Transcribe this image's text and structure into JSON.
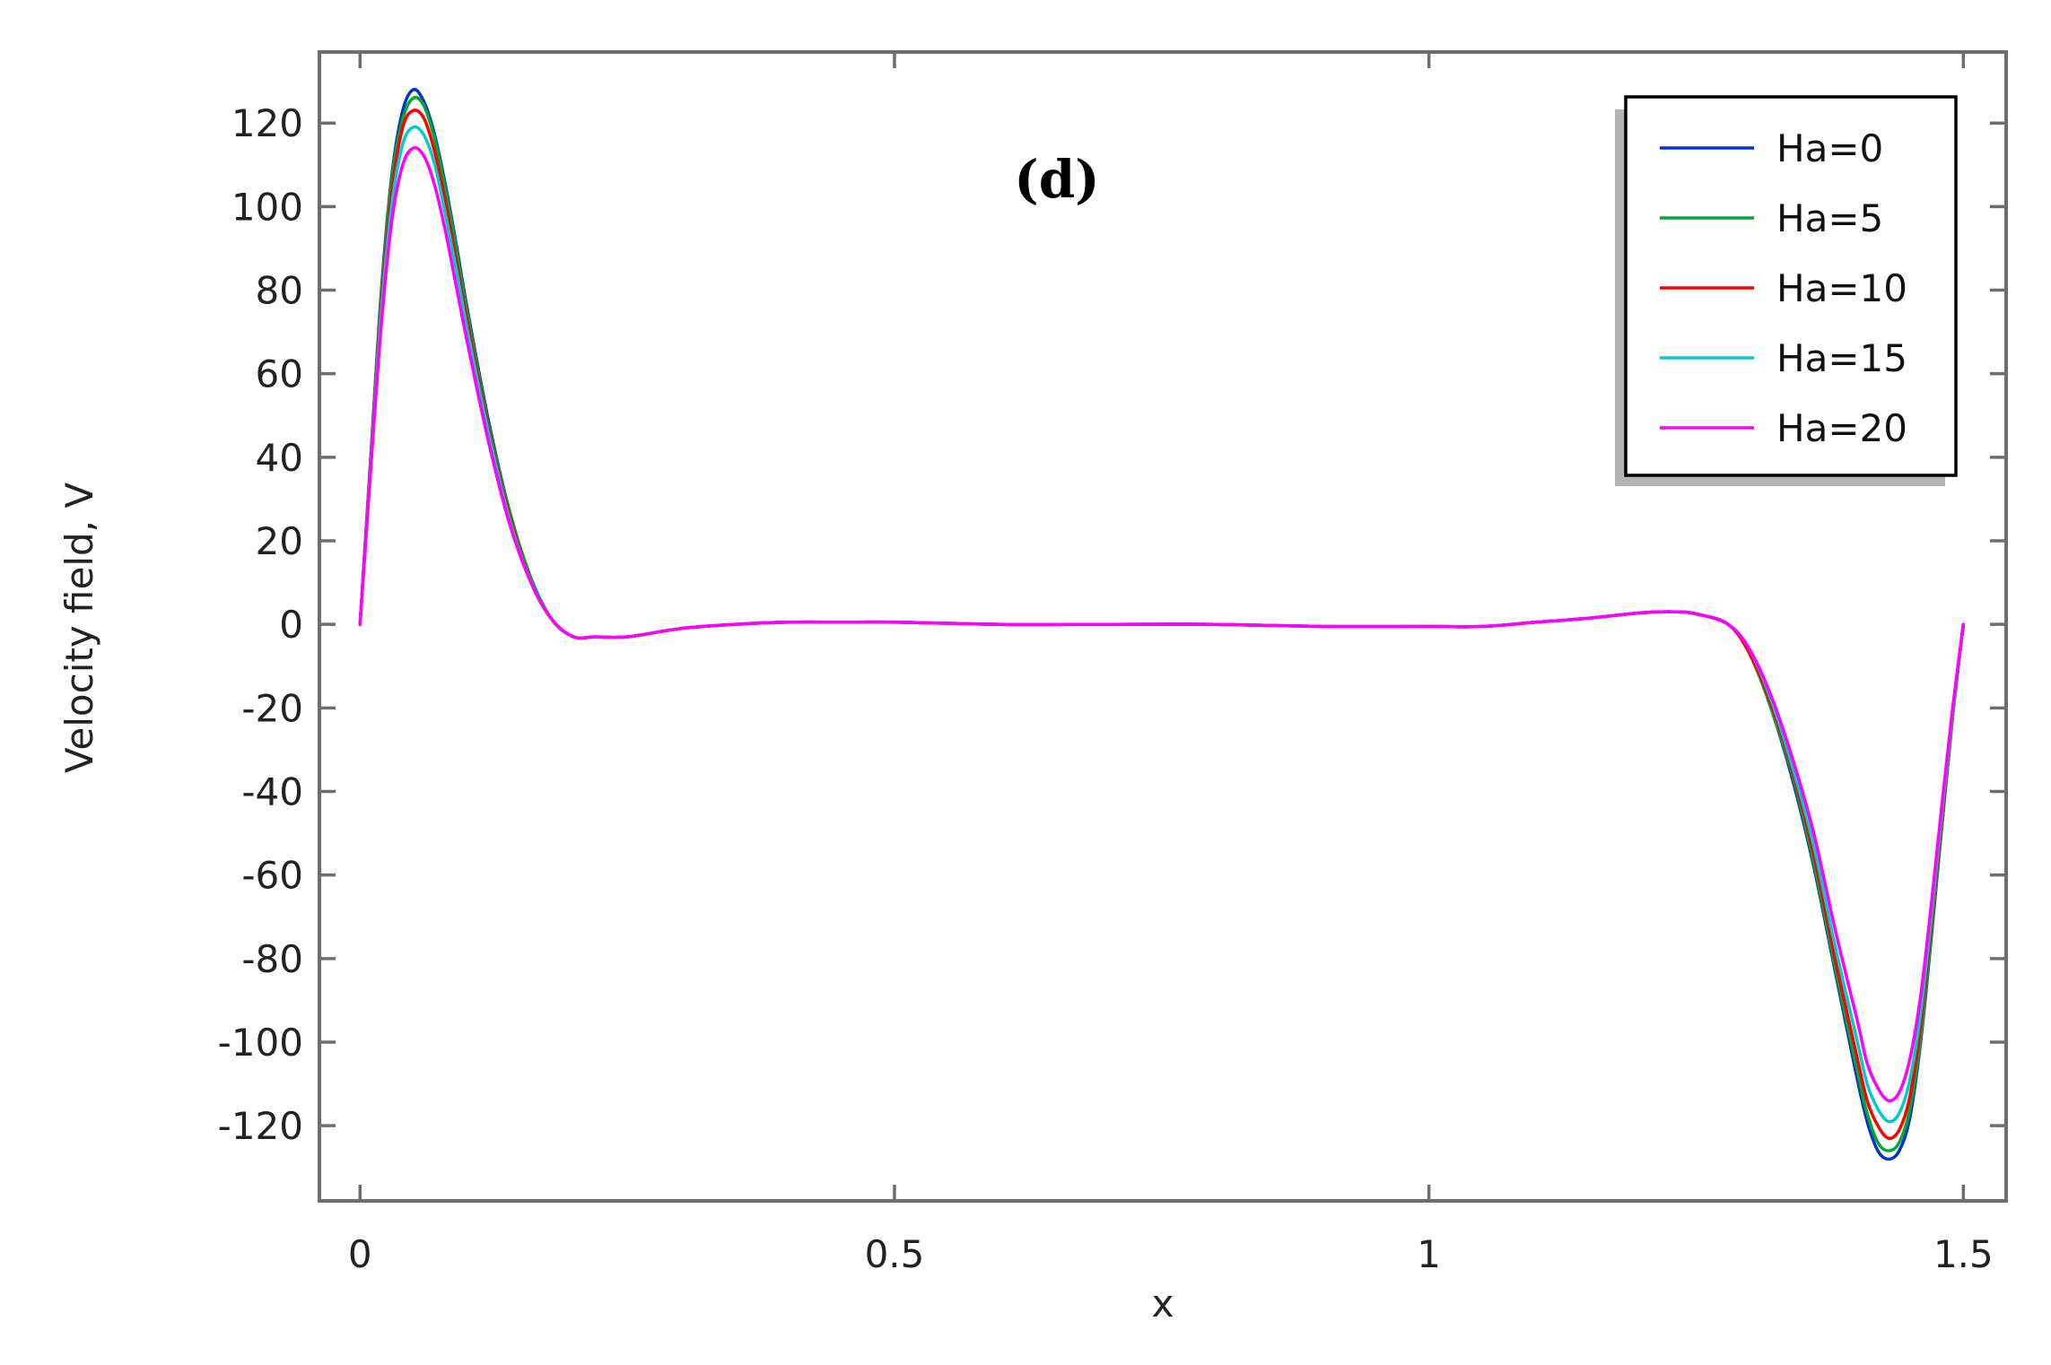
{
  "chart_data": {
    "type": "line",
    "panel_label": "(d)",
    "xlabel": "x",
    "ylabel": "Velocity field, V",
    "xlim": [
      -0.038,
      1.54
    ],
    "ylim": [
      -138,
      137
    ],
    "xticks": [
      0,
      0.5,
      1,
      1.5
    ],
    "xtick_labels": [
      "0",
      "0.5",
      "1",
      "1.5"
    ],
    "yticks": [
      120,
      100,
      80,
      60,
      40,
      20,
      0,
      -20,
      -40,
      -60,
      -80,
      -100,
      -120
    ],
    "ytick_labels": [
      "120",
      "100",
      "80",
      "60",
      "40",
      "20",
      "0",
      "-20",
      "-40",
      "-60",
      "-80",
      "-100",
      "-120"
    ],
    "grid": false,
    "legend_position": "top-right",
    "x": [
      0,
      0.01,
      0.02,
      0.03,
      0.04,
      0.05,
      0.06,
      0.07,
      0.08,
      0.09,
      0.1,
      0.12,
      0.14,
      0.16,
      0.18,
      0.2,
      0.22,
      0.25,
      0.3,
      0.35,
      0.4,
      0.45,
      0.5,
      0.6,
      0.7,
      0.8,
      0.9,
      1.0,
      1.05,
      1.1,
      1.15,
      1.2,
      1.23,
      1.25,
      1.28,
      1.3,
      1.32,
      1.34,
      1.36,
      1.38,
      1.4,
      1.41,
      1.42,
      1.43,
      1.44,
      1.45,
      1.46,
      1.47,
      1.48,
      1.49,
      1.5
    ],
    "series": [
      {
        "name": "Ha=0",
        "color": "#0033cc",
        "values": [
          0,
          40,
          80,
          108,
          123,
          128,
          125,
          117,
          105,
          91,
          76,
          49,
          27,
          11,
          1,
          -3,
          -3,
          -3,
          -1,
          0,
          0.5,
          0.5,
          0.5,
          0,
          0,
          0,
          -0.5,
          -0.5,
          -0.5,
          0.5,
          1.5,
          2.8,
          3,
          2.5,
          0,
          -7,
          -20,
          -37,
          -58,
          -83,
          -108,
          -119,
          -126,
          -128,
          -126,
          -118,
          -100,
          -75,
          -48,
          -22,
          0
        ]
      },
      {
        "name": "Ha=5",
        "color": "#00aa33",
        "values": [
          0,
          40,
          79,
          107,
          121,
          126,
          124,
          116,
          104,
          90,
          75,
          48,
          27,
          11,
          1,
          -3,
          -3,
          -3,
          -1,
          0,
          0.5,
          0.5,
          0.5,
          0,
          0,
          0,
          -0.5,
          -0.5,
          -0.5,
          0.5,
          1.5,
          2.8,
          3,
          2.5,
          0,
          -7,
          -20,
          -36,
          -57,
          -82,
          -106,
          -117,
          -124,
          -126,
          -124,
          -116,
          -99,
          -74,
          -48,
          -22,
          0
        ]
      },
      {
        "name": "Ha=10",
        "color": "#ff0000",
        "values": [
          0,
          39,
          77,
          104,
          119,
          123,
          121,
          113,
          101,
          87,
          73,
          47,
          26,
          10,
          1,
          -3,
          -3,
          -3,
          -1,
          0,
          0.5,
          0.5,
          0.5,
          0,
          0,
          0,
          -0.5,
          -0.5,
          -0.5,
          0.5,
          1.5,
          2.8,
          3,
          2.5,
          0,
          -7,
          -19,
          -35,
          -55,
          -80,
          -103,
          -114,
          -120,
          -123,
          -121,
          -113,
          -96,
          -72,
          -47,
          -21,
          0
        ]
      },
      {
        "name": "Ha=15",
        "color": "#00cccc",
        "values": [
          0,
          38,
          75,
          101,
          115,
          119,
          117,
          110,
          98,
          85,
          71,
          46,
          25,
          10,
          1,
          -3,
          -3,
          -3,
          -1,
          0,
          0.5,
          0.5,
          0.5,
          0,
          0,
          0,
          -0.5,
          -0.5,
          -0.5,
          0.5,
          1.5,
          2.8,
          3,
          2.5,
          0,
          -6,
          -18,
          -34,
          -53,
          -77,
          -99,
          -110,
          -116,
          -119,
          -117,
          -109,
          -93,
          -70,
          -45,
          -21,
          0
        ]
      },
      {
        "name": "Ha=20",
        "color": "#ff00ff",
        "values": [
          0,
          37,
          72,
          97,
          110,
          114,
          112,
          105,
          94,
          81,
          68,
          44,
          24,
          10,
          1,
          -3,
          -3,
          -3,
          -1,
          0,
          0.5,
          0.5,
          0.5,
          0,
          0,
          0,
          -0.5,
          -0.5,
          -0.5,
          0.5,
          1.5,
          2.8,
          3,
          2.5,
          0,
          -6,
          -17,
          -32,
          -50,
          -73,
          -94,
          -105,
          -111,
          -114,
          -112,
          -104,
          -89,
          -67,
          -43,
          -20,
          0
        ]
      }
    ]
  }
}
